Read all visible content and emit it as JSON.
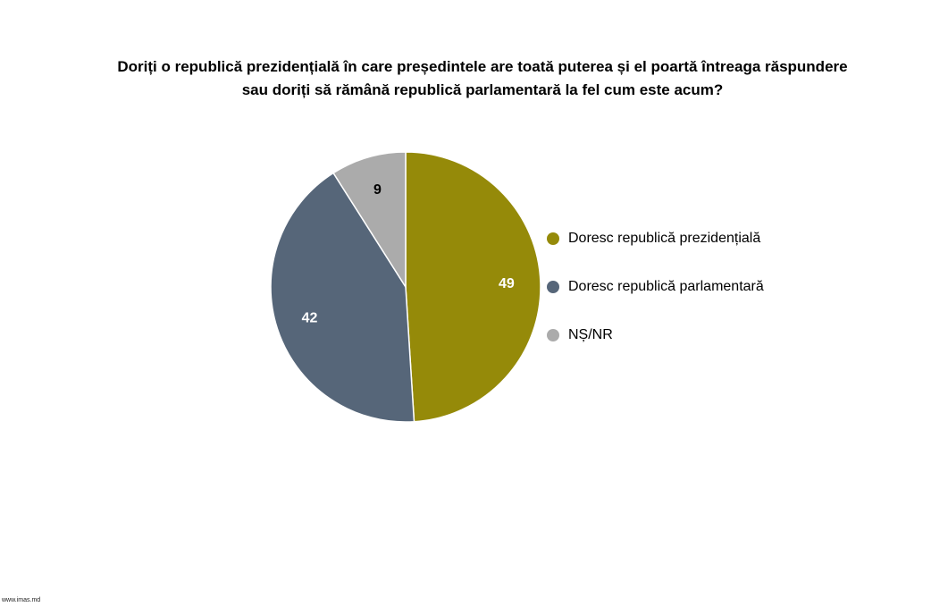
{
  "chart_data": {
    "type": "pie",
    "title": [
      "Doriți o republică prezidențială în care președintele are toată puterea și el poartă întreaga răspundere",
      "sau doriți să rămână republică parlamentară la fel cum este acum?"
    ],
    "legend_position": "right",
    "slices": [
      {
        "label": "Doresc republică prezidențială",
        "value": 49,
        "color": "#958A09",
        "label_color": "#ffffff"
      },
      {
        "label": "Doresc republică parlamentară",
        "value": 42,
        "color": "#566679",
        "label_color": "#ffffff"
      },
      {
        "label": "NȘ/NR",
        "value": 9,
        "color": "#ABABAB",
        "label_color": "#000000"
      }
    ]
  },
  "footer": "www.imas.md"
}
